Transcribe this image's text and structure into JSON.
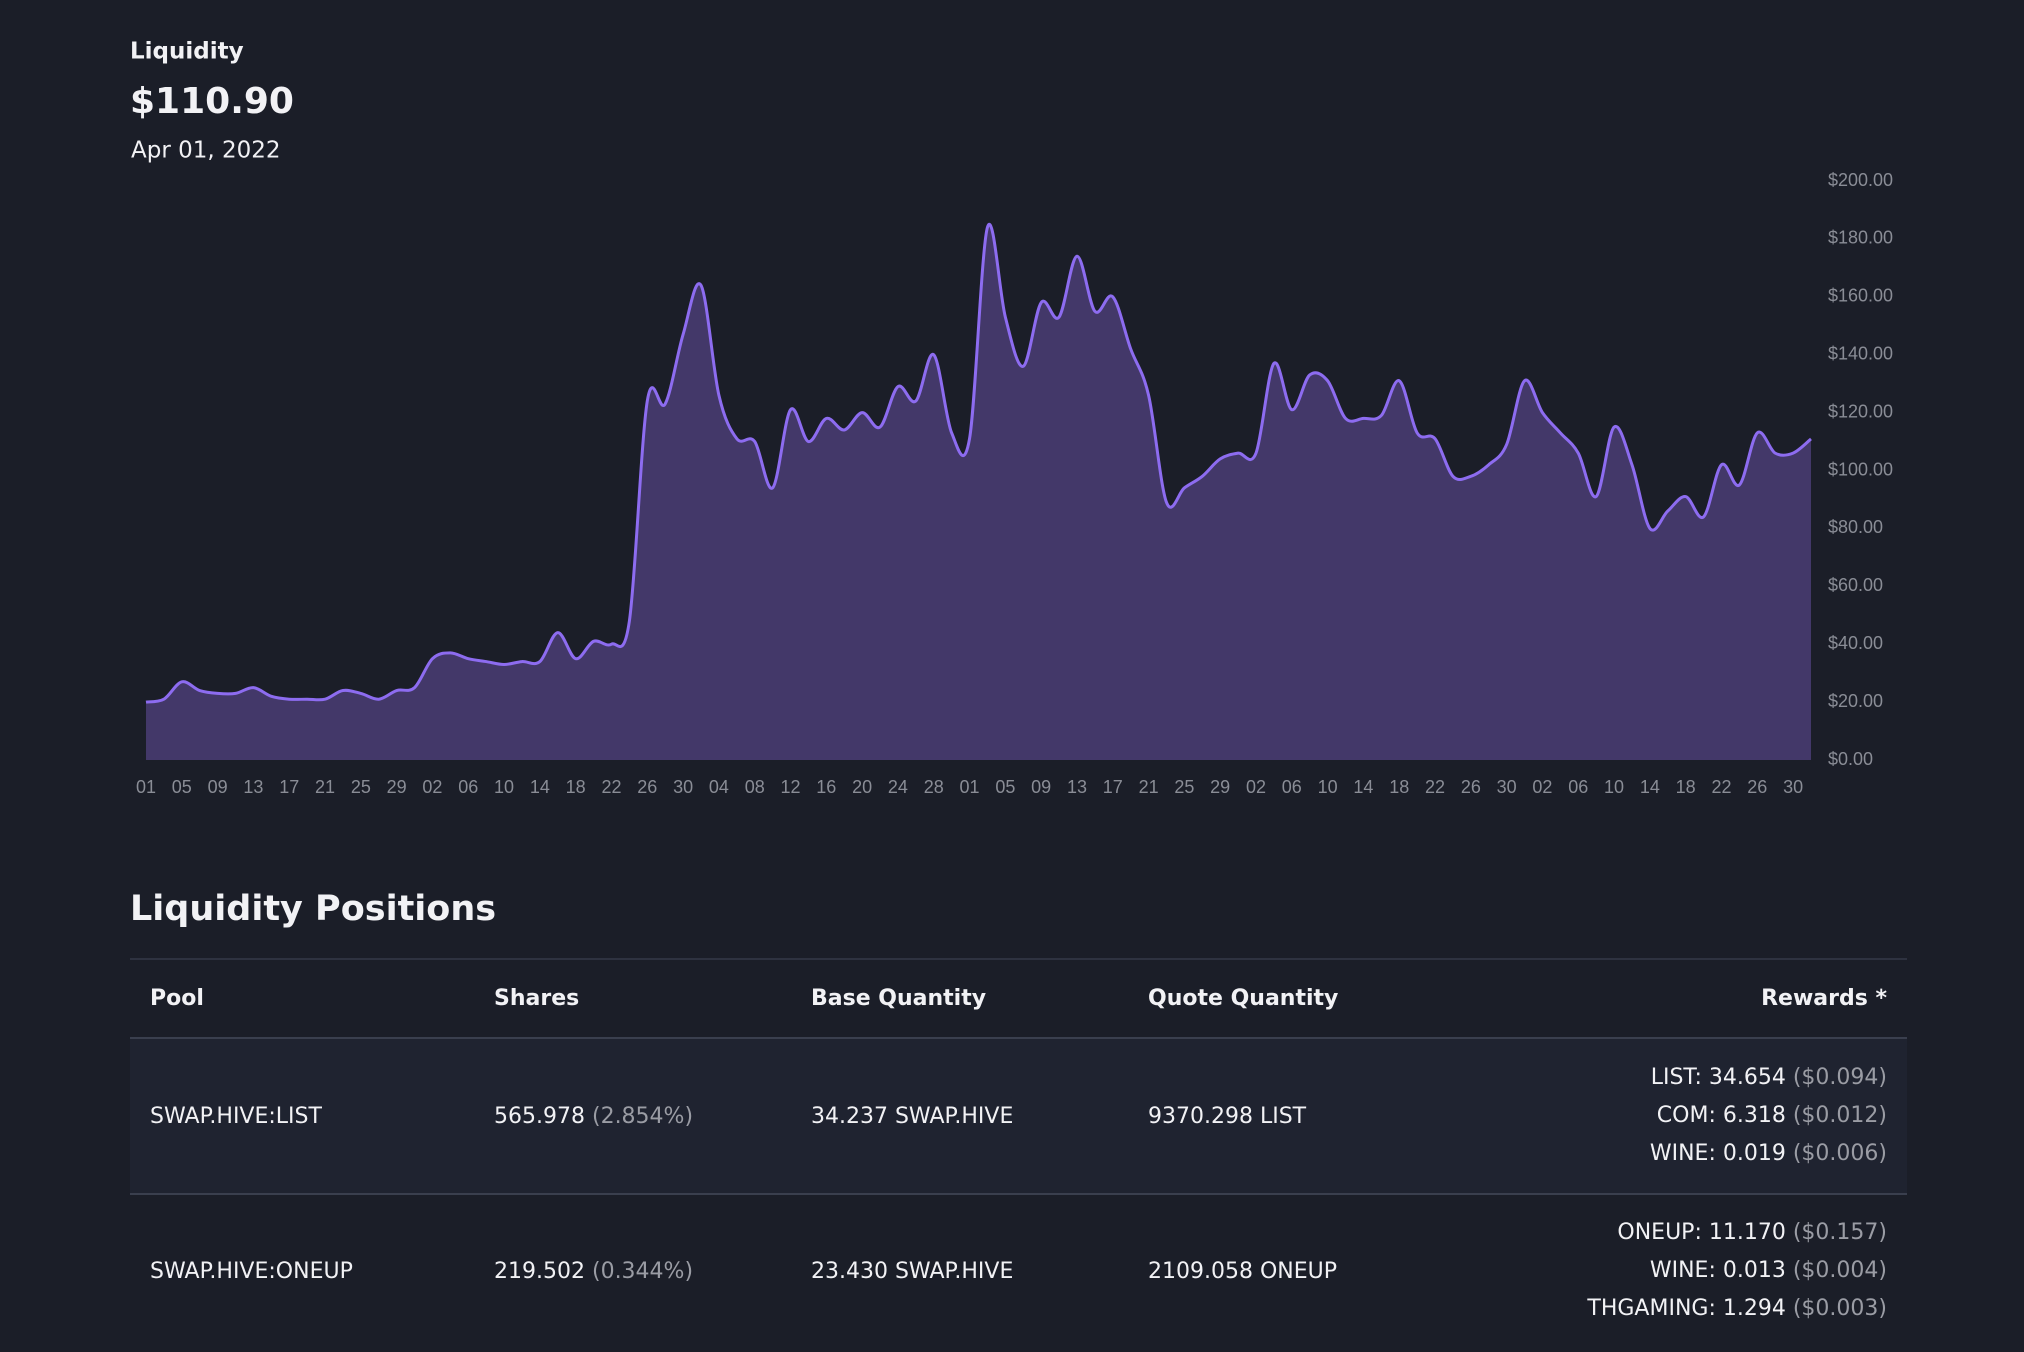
{
  "header": {
    "label": "Liquidity",
    "value": "$110.90",
    "date": "Apr 01, 2022"
  },
  "chart_data": {
    "type": "area",
    "categories": [
      "01",
      null,
      "05",
      null,
      "09",
      null,
      "13",
      null,
      "17",
      null,
      "21",
      null,
      "25",
      null,
      "29",
      null,
      "02",
      null,
      "06",
      null,
      "10",
      null,
      "14",
      null,
      "18",
      null,
      "22",
      null,
      "26",
      null,
      "30",
      null,
      "04",
      null,
      "08",
      null,
      "12",
      null,
      "16",
      null,
      "20",
      null,
      "24",
      null,
      "28",
      null,
      "01",
      null,
      "05",
      null,
      "09",
      null,
      "13",
      null,
      "17",
      null,
      "21",
      null,
      "25",
      null,
      "29",
      null,
      "02",
      null,
      "06",
      null,
      "10",
      null,
      "14",
      null,
      "18",
      null,
      "22",
      null,
      "26",
      null,
      "30",
      null,
      "02",
      null,
      "06",
      null,
      "10",
      null,
      "14",
      null,
      "18",
      null,
      "22",
      null,
      "26",
      null,
      "30",
      null
    ],
    "values": [
      20,
      21,
      27,
      24,
      23,
      23,
      25,
      22,
      21,
      21,
      21,
      24,
      23,
      21,
      24,
      25,
      35,
      37,
      35,
      34,
      33,
      34,
      34,
      44,
      35,
      41,
      40,
      48,
      124,
      123,
      147,
      164,
      126,
      111,
      110,
      94,
      121,
      110,
      118,
      114,
      120,
      115,
      129,
      124,
      140,
      113,
      111,
      184,
      153,
      136,
      158,
      153,
      174,
      155,
      160,
      142,
      126,
      89,
      94,
      98,
      104,
      106,
      106,
      137,
      121,
      133,
      131,
      118,
      118,
      119,
      131,
      113,
      111,
      98,
      98,
      102,
      109,
      131,
      120,
      113,
      106,
      91,
      115,
      102,
      80,
      86,
      91,
      84,
      102,
      95,
      113,
      106,
      106,
      110.9
    ],
    "color": "#8d6cf0",
    "fill": "#433869",
    "ylim": [
      0,
      200
    ],
    "yticks": [
      {
        "value": 0,
        "label": "$0.00"
      },
      {
        "value": 20,
        "label": "$20.00"
      },
      {
        "value": 40,
        "label": "$40.00"
      },
      {
        "value": 60,
        "label": "$60.00"
      },
      {
        "value": 80,
        "label": "$80.00"
      },
      {
        "value": 100,
        "label": "$100.00"
      },
      {
        "value": 120,
        "label": "$120.00"
      },
      {
        "value": 140,
        "label": "$140.00"
      },
      {
        "value": 160,
        "label": "$160.00"
      },
      {
        "value": 180,
        "label": "$180.00"
      },
      {
        "value": 200,
        "label": "$200.00"
      }
    ]
  },
  "positions": {
    "title": "Liquidity Positions",
    "columns": [
      "Pool",
      "Shares",
      "Base Quantity",
      "Quote Quantity",
      "Rewards *"
    ],
    "rows": [
      {
        "pool": "SWAP.HIVE:LIST",
        "shares": "565.978",
        "shares_pct": "(2.854%)",
        "base": "34.237 SWAP.HIVE",
        "quote": "9370.298 LIST",
        "rewards": [
          {
            "amount": "LIST: 34.654",
            "usd": "($0.094)"
          },
          {
            "amount": "COM: 6.318",
            "usd": "($0.012)"
          },
          {
            "amount": "WINE: 0.019",
            "usd": "($0.006)"
          }
        ]
      },
      {
        "pool": "SWAP.HIVE:ONEUP",
        "shares": "219.502",
        "shares_pct": "(0.344%)",
        "base": "23.430 SWAP.HIVE",
        "quote": "2109.058 ONEUP",
        "rewards": [
          {
            "amount": "ONEUP: 11.170",
            "usd": "($0.157)"
          },
          {
            "amount": "WINE: 0.013",
            "usd": "($0.004)"
          },
          {
            "amount": "THGAMING: 1.294",
            "usd": "($0.003)"
          }
        ]
      }
    ]
  }
}
